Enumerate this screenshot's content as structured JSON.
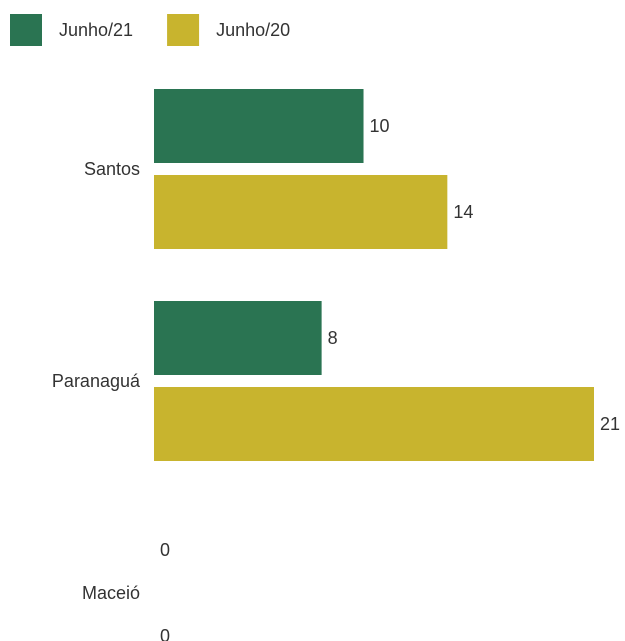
{
  "chart_data": {
    "type": "bar",
    "orientation": "horizontal",
    "categories": [
      "Santos",
      "Paranaguá",
      "Maceió"
    ],
    "series": [
      {
        "name": "Junho/21",
        "color": "#2a7452",
        "values": [
          10,
          8,
          0
        ]
      },
      {
        "name": "Junho/20",
        "color": "#c8b42e",
        "values": [
          14,
          21,
          0
        ]
      }
    ],
    "xlim": [
      0,
      21
    ],
    "legend_position": "top-left",
    "grid": false,
    "title": "",
    "xlabel": "",
    "ylabel": ""
  }
}
